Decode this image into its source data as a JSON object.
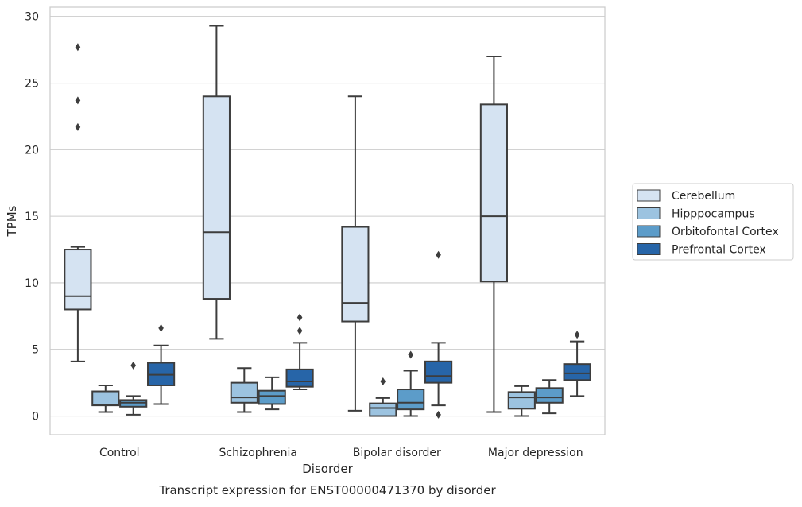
{
  "chart_data": {
    "type": "box",
    "title": "",
    "caption": "Transcript expression for ENST00000471370 by disorder",
    "xlabel": "Disorder",
    "ylabel": "TPMs",
    "ylim": [
      -1.4,
      30.7
    ],
    "yticks": [
      0,
      5,
      10,
      15,
      20,
      25,
      30
    ],
    "grid": true,
    "legend_position": "right",
    "categories": [
      "Control",
      "Schizophrenia",
      "Bipolar disorder",
      "Major depression"
    ],
    "series": [
      {
        "name": "Cerebellum",
        "color": "#d5e3f2",
        "boxes": [
          {
            "whisker_low": 4.1,
            "q1": 8.0,
            "median": 9.0,
            "q3": 12.5,
            "whisker_high": 12.7,
            "outliers": [
              21.7,
              23.7,
              27.7
            ]
          },
          {
            "whisker_low": 5.8,
            "q1": 8.8,
            "median": 13.8,
            "q3": 24.0,
            "whisker_high": 29.3,
            "outliers": []
          },
          {
            "whisker_low": 0.4,
            "q1": 7.1,
            "median": 8.5,
            "q3": 14.2,
            "whisker_high": 24.0,
            "outliers": []
          },
          {
            "whisker_low": 0.3,
            "q1": 10.1,
            "median": 15.0,
            "q3": 23.4,
            "whisker_high": 27.0,
            "outliers": []
          }
        ]
      },
      {
        "name": "Hipppocampus",
        "color": "#9cc3e0",
        "boxes": [
          {
            "whisker_low": 0.3,
            "q1": 0.8,
            "median": 0.85,
            "q3": 1.85,
            "whisker_high": 2.3,
            "outliers": []
          },
          {
            "whisker_low": 0.3,
            "q1": 1.0,
            "median": 1.4,
            "q3": 2.5,
            "whisker_high": 3.6,
            "outliers": []
          },
          {
            "whisker_low": 0.0,
            "q1": 0.0,
            "median": 0.6,
            "q3": 0.95,
            "whisker_high": 1.35,
            "outliers": [
              2.6
            ]
          },
          {
            "whisker_low": 0.0,
            "q1": 0.55,
            "median": 1.4,
            "q3": 1.8,
            "whisker_high": 2.25,
            "outliers": []
          }
        ]
      },
      {
        "name": "Orbitofontal Cortex",
        "color": "#5c9cc9",
        "boxes": [
          {
            "whisker_low": 0.1,
            "q1": 0.7,
            "median": 1.0,
            "q3": 1.2,
            "whisker_high": 1.5,
            "outliers": [
              3.8
            ]
          },
          {
            "whisker_low": 0.5,
            "q1": 0.9,
            "median": 1.5,
            "q3": 1.9,
            "whisker_high": 2.9,
            "outliers": []
          },
          {
            "whisker_low": 0.0,
            "q1": 0.5,
            "median": 1.0,
            "q3": 2.0,
            "whisker_high": 3.4,
            "outliers": [
              4.6
            ]
          },
          {
            "whisker_low": 0.2,
            "q1": 1.0,
            "median": 1.4,
            "q3": 2.1,
            "whisker_high": 2.7,
            "outliers": []
          }
        ]
      },
      {
        "name": "Prefrontal Cortex",
        "color": "#2765a8",
        "boxes": [
          {
            "whisker_low": 0.9,
            "q1": 2.3,
            "median": 3.1,
            "q3": 4.0,
            "whisker_high": 5.3,
            "outliers": [
              6.6
            ]
          },
          {
            "whisker_low": 2.0,
            "q1": 2.2,
            "median": 2.6,
            "q3": 3.5,
            "whisker_high": 5.5,
            "outliers": [
              6.4,
              7.4
            ]
          },
          {
            "whisker_low": 0.8,
            "q1": 2.5,
            "median": 3.0,
            "q3": 4.1,
            "whisker_high": 5.5,
            "outliers": [
              0.1,
              12.1
            ]
          },
          {
            "whisker_low": 1.5,
            "q1": 2.7,
            "median": 3.2,
            "q3": 3.9,
            "whisker_high": 5.6,
            "outliers": [
              6.1
            ]
          }
        ]
      }
    ]
  }
}
